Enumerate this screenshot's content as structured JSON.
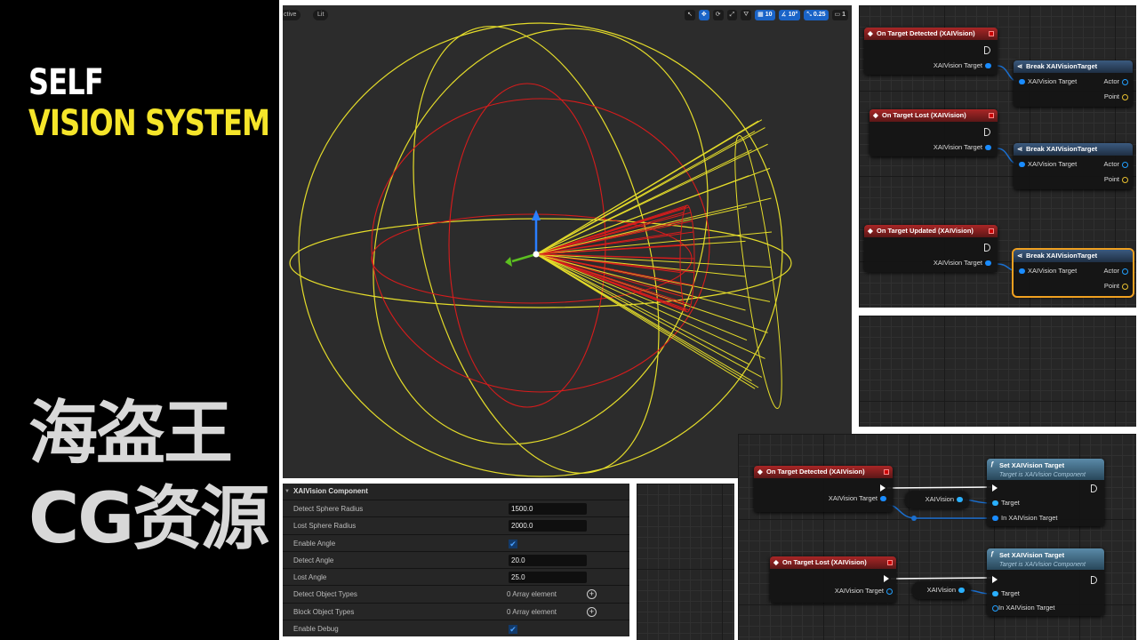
{
  "title": {
    "line1": "SELF",
    "line2": "VISION SYSTEM"
  },
  "viewport": {
    "mode_label": "ctive",
    "lit_label": "Lit",
    "grid_snap": "10",
    "angle_snap": "10°",
    "scale_snap": "0.25",
    "camera_speed": "1",
    "colors": {
      "detect": "#e01c1c",
      "lost": "#e8e02a",
      "gizmo_up": "#2a7fff",
      "gizmo_forward": "#5cc020"
    }
  },
  "blueprint_top": {
    "events": [
      {
        "title": "On Target Detected (XAIVision)",
        "pin": "XAIVision Target",
        "break": {
          "title": "Break XAIVisionTarget",
          "in": "XAIVision Target",
          "out1": "Actor",
          "out2": "Point"
        }
      },
      {
        "title": "On Target Lost (XAIVision)",
        "pin": "XAIVision Target",
        "break": {
          "title": "Break XAIVisionTarget",
          "in": "XAIVision Target",
          "out1": "Actor",
          "out2": "Point"
        }
      },
      {
        "title": "On Target Updated (XAIVision)",
        "pin": "XAIVision Target",
        "break": {
          "title": "Break XAIVisionTarget",
          "in": "XAIVision Target",
          "out1": "Actor",
          "out2": "Point"
        }
      }
    ]
  },
  "details": {
    "header": "XAIVision Component",
    "rows": [
      {
        "label": "Detect Sphere Radius",
        "value": "1500.0"
      },
      {
        "label": "Lost Sphere Radius",
        "value": "2000.0"
      },
      {
        "label": "Enable Angle",
        "checked": true
      },
      {
        "label": "Detect Angle",
        "value": "20.0"
      },
      {
        "label": "Lost Angle",
        "value": "25.0"
      },
      {
        "label": "Detect Object Types",
        "text": "0 Array element"
      },
      {
        "label": "Block Object Types",
        "text": "0 Array element"
      },
      {
        "label": "Enable Debug",
        "checked": true
      }
    ]
  },
  "blueprint_bottom": {
    "event1": {
      "title": "On Target Detected (XAIVision)",
      "pin": "XAIVision Target"
    },
    "var1": "XAIVision",
    "set1": {
      "title": "Set XAIVision Target",
      "subtitle": "Target is XAIVision Component",
      "pin1": "Target",
      "pin2": "In XAIVision Target"
    },
    "event2": {
      "title": "On Target Lost (XAIVision)",
      "pin": "XAIVision Target"
    },
    "var2": "XAIVision",
    "set2": {
      "title": "Set XAIVision Target",
      "subtitle": "Target is XAIVision Component",
      "pin1": "Target",
      "pin2": "In XAIVision Target"
    }
  },
  "watermark": "海盗王CG资源"
}
